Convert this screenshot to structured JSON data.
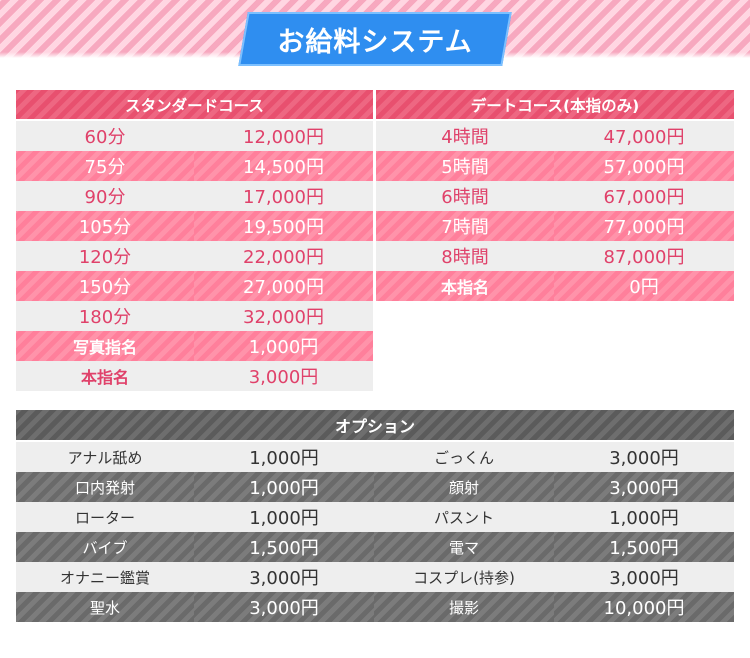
{
  "header": {
    "title": "お給料システム"
  },
  "standard": {
    "heading": "スタンダードコース",
    "rows": [
      {
        "label": "60分",
        "price": "12,000円"
      },
      {
        "label": "75分",
        "price": "14,500円"
      },
      {
        "label": "90分",
        "price": "17,000円"
      },
      {
        "label": "105分",
        "price": "19,500円"
      },
      {
        "label": "120分",
        "price": "22,000円"
      },
      {
        "label": "150分",
        "price": "27,000円"
      },
      {
        "label": "180分",
        "price": "32,000円"
      },
      {
        "label": "写真指名",
        "price": "1,000円"
      },
      {
        "label": "本指名",
        "price": "3,000円"
      }
    ]
  },
  "date": {
    "heading": "デートコース(本指のみ)",
    "rows": [
      {
        "label": "4時間",
        "price": "47,000円"
      },
      {
        "label": "5時間",
        "price": "57,000円"
      },
      {
        "label": "6時間",
        "price": "67,000円"
      },
      {
        "label": "7時間",
        "price": "77,000円"
      },
      {
        "label": "8時間",
        "price": "87,000円"
      },
      {
        "label": "本指名",
        "price": "0円"
      }
    ]
  },
  "options": {
    "heading": "オプション",
    "rows": [
      {
        "left_name": "アナル舐め",
        "left_price": "1,000円",
        "right_name": "ごっくん",
        "right_price": "3,000円"
      },
      {
        "left_name": "口内発射",
        "left_price": "1,000円",
        "right_name": "顔射",
        "right_price": "3,000円"
      },
      {
        "left_name": "ローター",
        "left_price": "1,000円",
        "right_name": "パスント",
        "right_price": "1,000円"
      },
      {
        "left_name": "バイブ",
        "left_price": "1,500円",
        "right_name": "電マ",
        "right_price": "1,500円"
      },
      {
        "left_name": "オナニー鑑賞",
        "left_price": "3,000円",
        "right_name": "コスプレ(持参)",
        "right_price": "3,000円"
      },
      {
        "left_name": "聖水",
        "left_price": "3,000円",
        "right_name": "撮影",
        "right_price": "10,000円"
      }
    ]
  },
  "colors": {
    "accent_pink": "#e8506f",
    "row_pink": "#ff7f9b",
    "title_blue": "#2f8ef0",
    "option_gray": "#5b5b5b"
  }
}
